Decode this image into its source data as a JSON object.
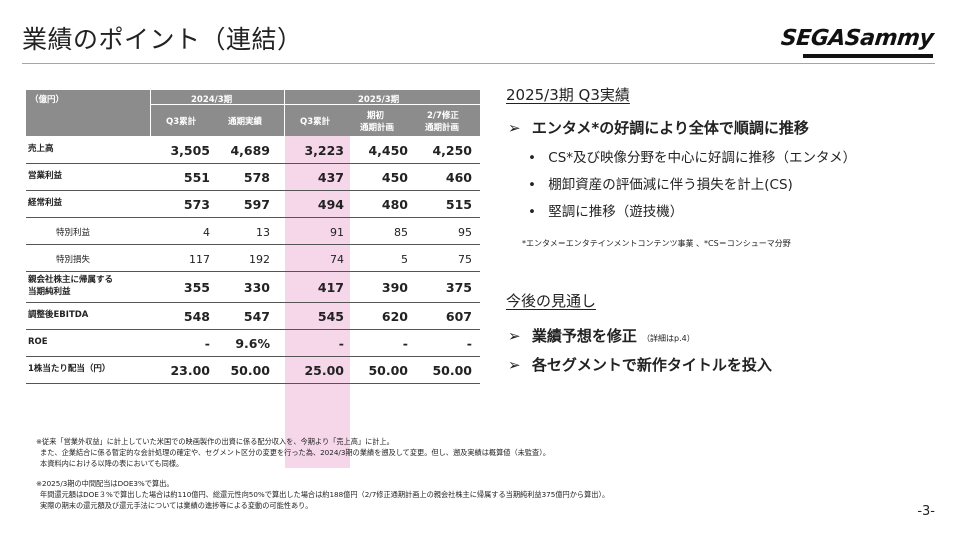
{
  "page": {
    "title": "業績のポイント（連結）",
    "logo": "SEGASammy",
    "page_number": "-3-"
  },
  "table": {
    "unit": "（億円）",
    "group_2024": "2024/3期",
    "group_2025": "2025/3期",
    "columns": [
      "Q3累計",
      "通期実績",
      "Q3累計",
      "期初\n通期計画",
      "2/7修正\n通期計画"
    ],
    "col_labels": {
      "c1": "Q3累計",
      "c2": "通期実績",
      "c3": "Q3累計",
      "c4a": "期初",
      "c4b": "通期計画",
      "c5a": "2/7修正",
      "c5b": "通期計画"
    },
    "rows": [
      {
        "label": "売上高",
        "values": [
          "3,505",
          "4,689",
          "3,223",
          "4,450",
          "4,250"
        ]
      },
      {
        "label": "営業利益",
        "values": [
          "551",
          "578",
          "437",
          "450",
          "460"
        ]
      },
      {
        "label": "経常利益",
        "values": [
          "573",
          "597",
          "494",
          "480",
          "515"
        ]
      },
      {
        "label": "特別利益",
        "values": [
          "4",
          "13",
          "91",
          "85",
          "95"
        ]
      },
      {
        "label": "特別損失",
        "values": [
          "117",
          "192",
          "74",
          "5",
          "75"
        ]
      },
      {
        "label_l1": "親会社株主に帰属する",
        "label_l2": "当期純利益",
        "values": [
          "355",
          "330",
          "417",
          "390",
          "375"
        ]
      },
      {
        "label": "調整後EBITDA",
        "values": [
          "548",
          "547",
          "545",
          "620",
          "607"
        ]
      },
      {
        "label": "ROE",
        "values": [
          "-",
          "9.6%",
          "-",
          "-",
          "-"
        ]
      },
      {
        "label": "1株当たり配当（円）",
        "values": [
          "23.00",
          "50.00",
          "25.00",
          "50.00",
          "50.00"
        ]
      }
    ]
  },
  "right": {
    "heading1": "2025/3期 Q3実績",
    "bullet1": "エンタメ*の好調により全体で順調に推移",
    "sub1": "CS*及び映像分野を中心に好調に推移（エンタメ）",
    "sub2": "棚卸資産の評価減に伴う損失を計上(CS)",
    "sub3": "堅調に推移（遊技機）",
    "note": "*エンタメ＝エンタテインメントコンテンツ事業 、*CS＝コンシューマ分野",
    "heading2": "今後の見通し",
    "bullet2": "業績予想を修正",
    "bullet2_note": "（詳細はp.4）",
    "bullet3": "各セグメントで新作タイトルを投入"
  },
  "footnotes": {
    "f1": "※従来「営業外収益」に計上していた米国での映画製作の出資に係る配分収入を、今期より「売上高」に計上。",
    "f2": "また、企業結合に係る暫定的な会計処理の確定や、セグメント区分の変更を行った為、2024/3期の業績を遡及して変更。但し、遡及実績は概算値（未監査）。",
    "f3": "本資料内における以降の表においても同様。",
    "f4": "※2025/3期の中間配当はDOE3%で算出。",
    "f5": "年間還元額はDOE３%で算出した場合は約110億円、総還元性向50%で算出した場合は約188億円（2/7修正通期計画上の親会社株主に帰属する当期純利益375億円から算出）。",
    "f6": "実際の期末の還元額及び還元手法については業績の進捗等による変動の可能性あり。"
  }
}
